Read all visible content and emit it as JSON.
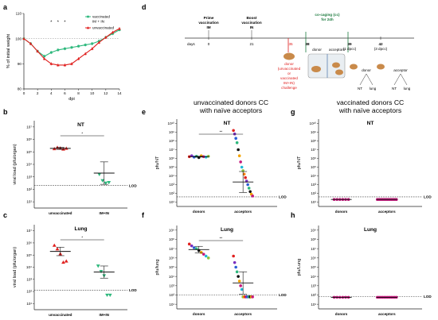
{
  "chart_data": [
    {
      "id": "a",
      "type": "line",
      "panel": "a",
      "xlabel": "dpi",
      "ylabel": "% of initial weight",
      "xlim": [
        0,
        14
      ],
      "ylim": [
        80,
        110
      ],
      "xticks": [
        "0",
        "2",
        "4",
        "6",
        "8",
        "10",
        "12",
        "14"
      ],
      "yticks": [
        "80",
        "90",
        "100",
        "110"
      ],
      "x": [
        0,
        1,
        2,
        3,
        4,
        5,
        6,
        7,
        8,
        9,
        10,
        11,
        12,
        13,
        14
      ],
      "annotations": [
        "*",
        "*",
        "*"
      ],
      "annotation_x": [
        4,
        5,
        6
      ],
      "series": [
        {
          "name": "vaccinated IM + IN",
          "color": "#2db87c",
          "values": [
            100,
            98,
            95,
            93,
            94.5,
            95.5,
            96,
            96.5,
            97,
            97.5,
            98,
            99,
            100.5,
            102,
            103.5
          ]
        },
        {
          "name": "unvaccinated",
          "color": "#e0201f",
          "values": [
            100,
            98,
            95,
            92,
            90,
            89.5,
            89.5,
            90,
            92,
            94,
            96,
            98.5,
            100.5,
            102.5,
            104
          ]
        }
      ]
    },
    {
      "id": "b",
      "type": "scatter",
      "panel": "b",
      "title": "NT",
      "ylabel": "viral load (pfu/organ)",
      "yticks": [
        "10¹",
        "10²",
        "10³",
        "10⁴",
        "10⁵",
        "10⁶",
        "10⁷"
      ],
      "categories": [
        "unvaccinated",
        "IM+IN"
      ],
      "lod_label": "LOD",
      "lod": 2.3,
      "signif": "*",
      "points": [
        {
          "cat": 0,
          "values": [
            5.25,
            5.35,
            5.3,
            5.22,
            5.28
          ],
          "shape": "tri-up",
          "color": "#e0201f"
        },
        {
          "cat": 1,
          "values": [
            3.2,
            2.7,
            2.5,
            2.55
          ],
          "shape": "tri-down",
          "color": "#2db87c"
        }
      ],
      "mean": [
        5.28,
        3.3
      ],
      "err": [
        0.08,
        0.9
      ]
    },
    {
      "id": "c",
      "type": "scatter",
      "panel": "c",
      "title": "Lung",
      "ylabel": "viral load (pfu/organ)",
      "yticks": [
        "10¹",
        "10²",
        "10³",
        "10⁴",
        "10⁵",
        "10⁶",
        "10⁷"
      ],
      "categories": [
        "unvaccinated",
        "IM+IN"
      ],
      "lod_label": "LOD",
      "lod": 2.1,
      "signif": "*",
      "points": [
        {
          "cat": 0,
          "values": [
            5.8,
            5.5,
            5.1,
            4.4,
            4.5
          ],
          "shape": "tri-up",
          "color": "#e0201f"
        },
        {
          "cat": 1,
          "values": [
            4.1,
            3.65,
            3.3,
            1.7,
            1.7
          ],
          "shape": "tri-down",
          "color": "#2db87c"
        }
      ],
      "mean": [
        5.3,
        3.6
      ],
      "err": [
        0.35,
        0.5
      ]
    },
    {
      "id": "e",
      "type": "scatter",
      "panel": "e",
      "title": "NT",
      "ylabel": "pfu/NT",
      "yticks": [
        "10¹",
        "10²",
        "10³",
        "10⁴",
        "10⁵",
        "10⁶",
        "10⁷",
        "10⁸",
        "10⁹",
        "10¹⁰"
      ],
      "categories": [
        "donors",
        "acceptors"
      ],
      "lod_label": "LOD",
      "lod": 1.6,
      "signif": "**",
      "points": [
        {
          "cat": 0,
          "values": [
            6.2,
            6.3,
            6.15,
            6.25,
            6.1,
            6.3,
            6.2,
            6.15,
            6.25
          ],
          "shape": "circle",
          "color": "mixed"
        },
        {
          "cat": 1,
          "values": [
            9.2,
            8.8,
            8.3,
            7.8,
            7.0,
            6.3,
            5.6,
            5.0,
            4.6,
            4.2,
            3.8,
            3.4,
            3.0,
            2.6,
            2.2,
            1.9,
            1.7
          ],
          "shape": "circle",
          "color": "mixed"
        }
      ],
      "mean": [
        6.2,
        3.3
      ],
      "err": [
        0.05,
        1.2
      ]
    },
    {
      "id": "f",
      "type": "scatter",
      "panel": "f",
      "title": "Lung",
      "ylabel": "pfu/lung",
      "yticks": [
        "10¹",
        "10²",
        "10³",
        "10⁴",
        "10⁵",
        "10⁶",
        "10⁷",
        "10⁸",
        "10⁹"
      ],
      "categories": [
        "donors",
        "acceptors"
      ],
      "lod_label": "LOD",
      "lod": 2.0,
      "signif": "**",
      "points": [
        {
          "cat": 0,
          "values": [
            7.5,
            7.3,
            7.1,
            7.0,
            6.8,
            6.6,
            6.4,
            6.2,
            6.0
          ],
          "shape": "circle",
          "color": "mixed"
        },
        {
          "cat": 1,
          "values": [
            6.2,
            5.5,
            5.0,
            4.5,
            4.0,
            3.5,
            3.0,
            2.6,
            1.8,
            1.8,
            1.8,
            1.8,
            1.8,
            1.8,
            1.8,
            1.8,
            1.8
          ],
          "shape": "circle",
          "color": "mixed"
        }
      ],
      "mean": [
        6.9,
        3.3
      ],
      "err": [
        0.35,
        1.2
      ]
    },
    {
      "id": "g",
      "type": "scatter",
      "panel": "g",
      "title": "NT",
      "ylabel": "pfu/NT",
      "yticks": [
        "10¹",
        "10²",
        "10³",
        "10⁴",
        "10⁵",
        "10⁶",
        "10⁷",
        "10⁸",
        "10⁹",
        "10¹⁰"
      ],
      "categories": [
        "donors",
        "acceptors"
      ],
      "lod_label": "LOD",
      "lod": 1.6,
      "points": [
        {
          "cat": 0,
          "values": [
            1.3,
            1.3,
            1.3,
            1.3,
            1.3,
            1.3
          ],
          "shape": "circle",
          "color": "#c5197d"
        },
        {
          "cat": 1,
          "values": [
            1.3,
            1.3,
            1.3,
            1.3,
            1.3,
            1.3,
            1.3,
            1.3,
            1.3,
            1.3,
            1.3,
            1.3
          ],
          "shape": "circle",
          "color": "#c5197d"
        }
      ],
      "mean": [
        1.3,
        1.3
      ],
      "err": [
        0,
        0
      ]
    },
    {
      "id": "h",
      "type": "scatter",
      "panel": "h",
      "title": "Lung",
      "ylabel": "pfu/Lung",
      "yticks": [
        "10¹",
        "10²",
        "10³",
        "10⁴",
        "10⁵",
        "10⁶",
        "10⁷",
        "10⁸",
        "10⁹"
      ],
      "categories": [
        "donors",
        "acceptors"
      ],
      "lod_label": "LOD",
      "lod": 1.85,
      "points": [
        {
          "cat": 0,
          "values": [
            1.75,
            1.75,
            1.75,
            1.75,
            1.75,
            1.75
          ],
          "shape": "circle",
          "color": "#c5197d"
        },
        {
          "cat": 1,
          "values": [
            1.75,
            1.75,
            1.75,
            1.75,
            1.75,
            1.75,
            1.75,
            1.75,
            1.75,
            1.75,
            1.75,
            1.75
          ],
          "shape": "circle",
          "color": "#c5197d"
        }
      ],
      "mean": [
        1.75,
        1.75
      ],
      "err": [
        0,
        0
      ]
    }
  ],
  "dot_palette": [
    "#e0201f",
    "#7a2fbf",
    "#2a5fd6",
    "#2db87c",
    "#111111",
    "#f4a400",
    "#c5197d",
    "#1fb9d8",
    "#8dc63f",
    "#ff7f0e"
  ],
  "panel_labels": {
    "a": "a",
    "b": "b",
    "c": "c",
    "d": "d",
    "e": "e",
    "f": "f",
    "g": "g",
    "h": "h"
  },
  "headers": {
    "mid": [
      "unvaccinated donors CC",
      "with naïve acceptors"
    ],
    "right": [
      "vaccinated donors CC",
      "with naïve acceptors"
    ]
  },
  "schematic": {
    "days_label": "days",
    "prime": [
      "Prime",
      "vaccination",
      "IM"
    ],
    "boost": [
      "Boost",
      "vaccination",
      "IN"
    ],
    "cocaging": [
      "co-caging (cc)",
      "for 24h"
    ],
    "days": [
      "0",
      "21",
      "35",
      "38",
      "39",
      "42"
    ],
    "dpcc": [
      "(1 dpcc)",
      "(3 dpcc)"
    ],
    "donor_note": [
      "donor",
      "(unvaccinated",
      "or",
      "vaccinated",
      "IM+IN)",
      "challenge"
    ],
    "cage_labels": [
      "donor",
      "acceptors"
    ],
    "branch_labels": [
      "donor",
      "acceptor"
    ],
    "leaves": [
      "NT",
      "lung",
      "NT",
      "lung"
    ]
  },
  "colors": {
    "red": "#e0201f",
    "green": "#2db87c",
    "darkgreen": "#1c7a3e",
    "magenta": "#c5197d"
  }
}
